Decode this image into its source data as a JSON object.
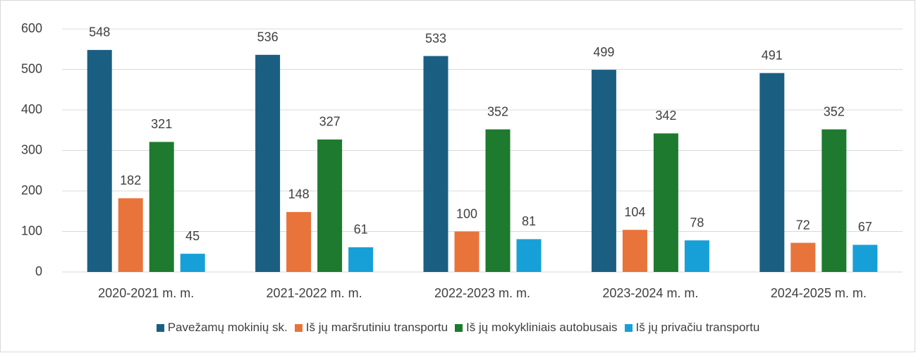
{
  "chart_data": {
    "type": "bar",
    "categories": [
      "2020-2021 m. m.",
      "2021-2022 m. m.",
      "2022-2023 m. m.",
      "2023-2024 m. m.",
      "2024-2025 m. m."
    ],
    "series": [
      {
        "name": "Pavežamų mokinių sk.",
        "color": "#1a5f82",
        "values": [
          548,
          536,
          533,
          499,
          491
        ]
      },
      {
        "name": "Iš jų maršrutiniu transportu",
        "color": "#e8743b",
        "values": [
          182,
          148,
          100,
          104,
          72
        ]
      },
      {
        "name": "Iš jų mokykliniais autobusais",
        "color": "#1e7a2e",
        "values": [
          321,
          327,
          352,
          342,
          352
        ]
      },
      {
        "name": "Iš jų privačiu transportu",
        "color": "#17a0d8",
        "values": [
          45,
          61,
          81,
          78,
          67
        ]
      }
    ],
    "ylim": [
      0,
      600
    ],
    "yticks": [
      0,
      100,
      200,
      300,
      400,
      500,
      600
    ],
    "grid": true,
    "legend": "bottom"
  }
}
